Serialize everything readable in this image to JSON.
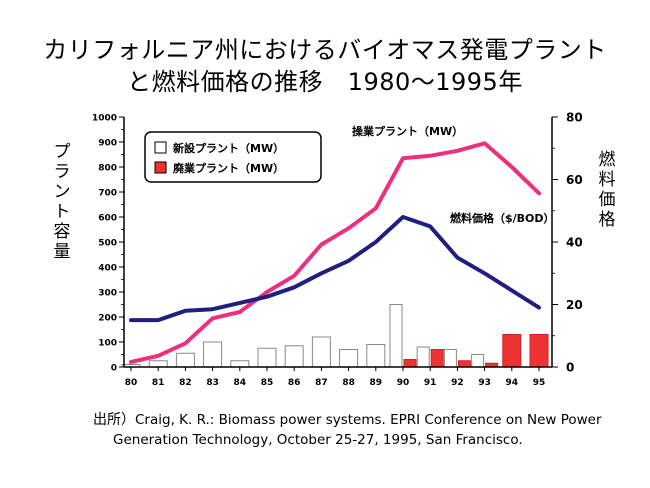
{
  "title": {
    "line1": "カリフォルニア州におけるバイオマス発電プラント",
    "line2": "と燃料価格の推移　1980～1995年"
  },
  "source": {
    "head": "出所）",
    "line1": "Craig, K. R.: Biomass power systems. EPRI Conference on New Power",
    "line2": "Generation Technology, October 25-27, 1995, San Francisco."
  },
  "chart_data": {
    "type": "bar",
    "ylabel": "プラント容量",
    "y2label": "燃料価格",
    "ylim": [
      0,
      1000
    ],
    "y2lim": [
      0,
      80
    ],
    "y_ticks": [
      0,
      100,
      200,
      300,
      400,
      500,
      600,
      700,
      800,
      900,
      1000
    ],
    "y2_ticks": [
      0,
      20,
      40,
      60,
      80
    ],
    "categories": [
      "80",
      "81",
      "82",
      "83",
      "84",
      "85",
      "86",
      "87",
      "88",
      "89",
      "90",
      "91",
      "92",
      "93",
      "94",
      "95"
    ],
    "legend": {
      "placement": "top-left",
      "items": [
        {
          "label": "新設プラント（MW）",
          "color": "#ffffff"
        },
        {
          "label": "廃業プラント（MW）",
          "color": "#ee3333"
        }
      ]
    },
    "series": [
      {
        "name": "新設プラント（MW）",
        "kind": "bar",
        "axis": "left",
        "color": "#ffffff",
        "stroke": "#888888",
        "values": [
          10,
          25,
          55,
          100,
          25,
          75,
          85,
          120,
          70,
          90,
          250,
          80,
          70,
          50,
          0,
          0
        ]
      },
      {
        "name": "廃業プラント（MW）",
        "kind": "bar",
        "axis": "left",
        "color": "#ee3333",
        "stroke": "#cc2222",
        "values": [
          0,
          0,
          0,
          0,
          0,
          0,
          0,
          0,
          0,
          0,
          30,
          70,
          25,
          15,
          130,
          130
        ]
      },
      {
        "name": "操業プラント（MW）",
        "kind": "line",
        "axis": "left",
        "color": "#ee2f7e",
        "values": [
          20,
          45,
          95,
          195,
          220,
          300,
          365,
          490,
          555,
          635,
          835,
          845,
          865,
          895,
          800,
          695
        ]
      },
      {
        "name": "燃料価格（$/BOD）",
        "kind": "line",
        "axis": "right",
        "color": "#1f1f80",
        "values": [
          15,
          15,
          18,
          18.5,
          20.5,
          22.5,
          25.5,
          30,
          34,
          40,
          48,
          45,
          35,
          30,
          24.5,
          19
        ]
      }
    ],
    "annotations": [
      {
        "text": "操業プラント（MW）",
        "series": "操業プラント（MW）"
      },
      {
        "text": "燃料価格（$/BOD）",
        "series": "燃料価格（$/BOD）"
      }
    ],
    "grid": false
  }
}
